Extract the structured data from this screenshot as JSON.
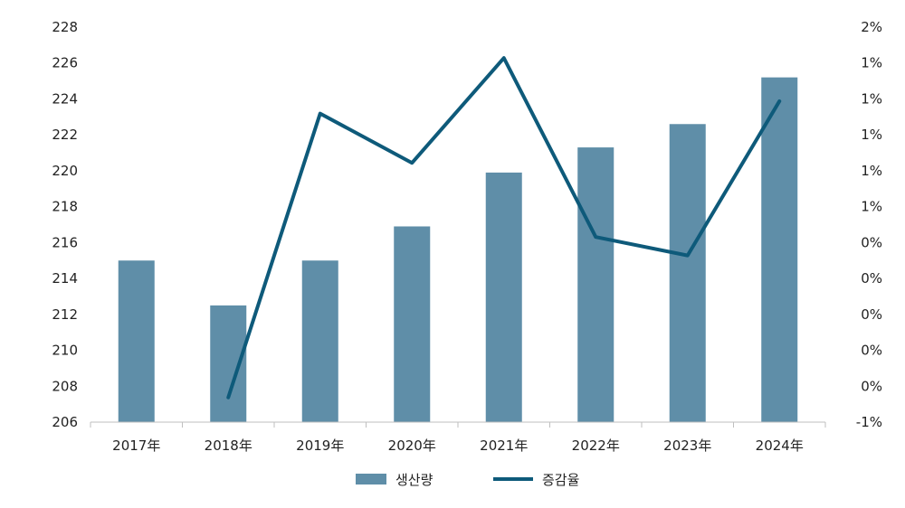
{
  "chart_data": {
    "type": "bar+line",
    "title": "",
    "categories": [
      "2017年",
      "2018年",
      "2019年",
      "2020年",
      "2021年",
      "2022年",
      "2023年",
      "2024年"
    ],
    "series": [
      {
        "name": "생산량",
        "type": "bar",
        "axis": "left",
        "color": "#5f8ea8",
        "values": [
          215.0,
          212.5,
          215.0,
          216.9,
          219.9,
          221.3,
          222.6,
          225.2
        ]
      },
      {
        "name": "증감율",
        "type": "line",
        "axis": "right",
        "color": "#0e5a7a",
        "values": [
          null,
          -0.8,
          1.5,
          1.1,
          1.95,
          0.5,
          0.35,
          1.6
        ]
      }
    ],
    "left_axis": {
      "ylim": [
        206,
        228
      ],
      "ticks": [
        "206",
        "208",
        "210",
        "212",
        "214",
        "216",
        "218",
        "220",
        "222",
        "224",
        "226",
        "228"
      ]
    },
    "right_axis": {
      "ylim": [
        -1,
        2.2
      ],
      "ticks": [
        "-1%",
        "0%",
        "0%",
        "0%",
        "0%",
        "0%",
        "1%",
        "1%",
        "1%",
        "1%",
        "1%",
        "2%"
      ]
    },
    "legend": {
      "placement": "bottom-center",
      "items": [
        "생산량",
        "증감율"
      ]
    },
    "grid": false
  }
}
